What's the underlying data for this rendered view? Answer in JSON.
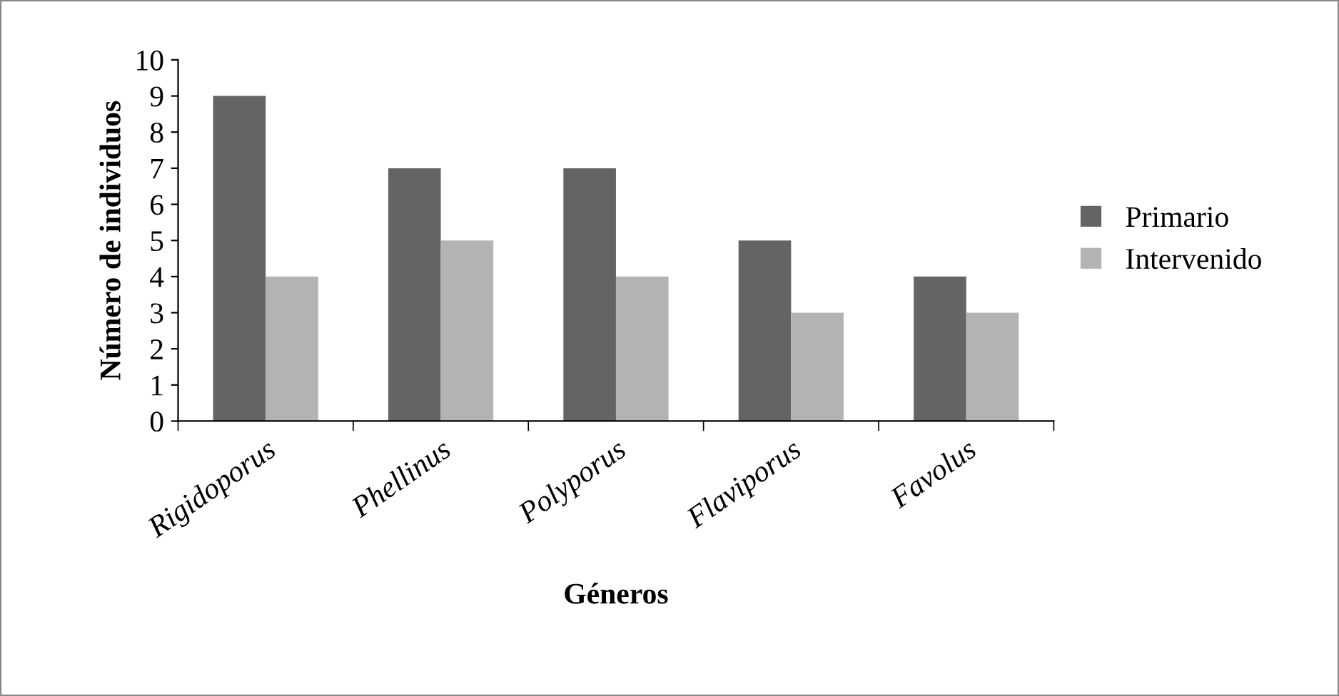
{
  "chart_data": {
    "type": "bar",
    "xlabel": "Géneros",
    "ylabel": "Número de individuos",
    "categories": [
      "Rigidoporus",
      "Phellinus",
      "Polyporus",
      "Flaviporus",
      "Favolus"
    ],
    "series": [
      {
        "name": "Primario",
        "color": "#646464",
        "values": [
          9,
          7,
          7,
          5,
          4
        ]
      },
      {
        "name": "Intervenido",
        "color": "#b3b3b3",
        "values": [
          4,
          5,
          4,
          3,
          3
        ]
      }
    ],
    "ylim": [
      0,
      10
    ],
    "yticks": [
      0,
      1,
      2,
      3,
      4,
      5,
      6,
      7,
      8,
      9,
      10
    ],
    "grid": false,
    "legend": "right"
  }
}
